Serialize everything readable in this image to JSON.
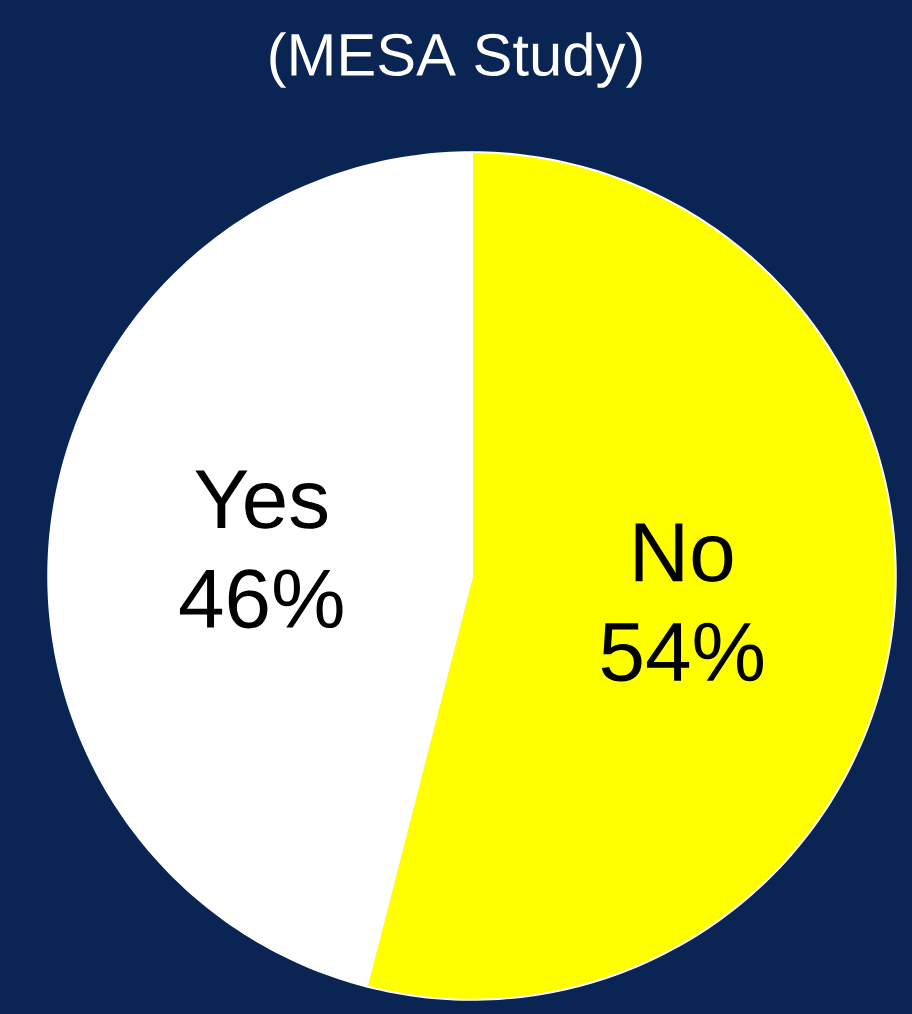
{
  "chart_data": {
    "type": "pie",
    "title": "(MESA Study)",
    "categories": [
      "No",
      "Yes"
    ],
    "values": [
      54,
      46
    ],
    "colors": [
      "#ffff00",
      "#ffffff"
    ],
    "value_labels": [
      "54%",
      "46%"
    ]
  }
}
